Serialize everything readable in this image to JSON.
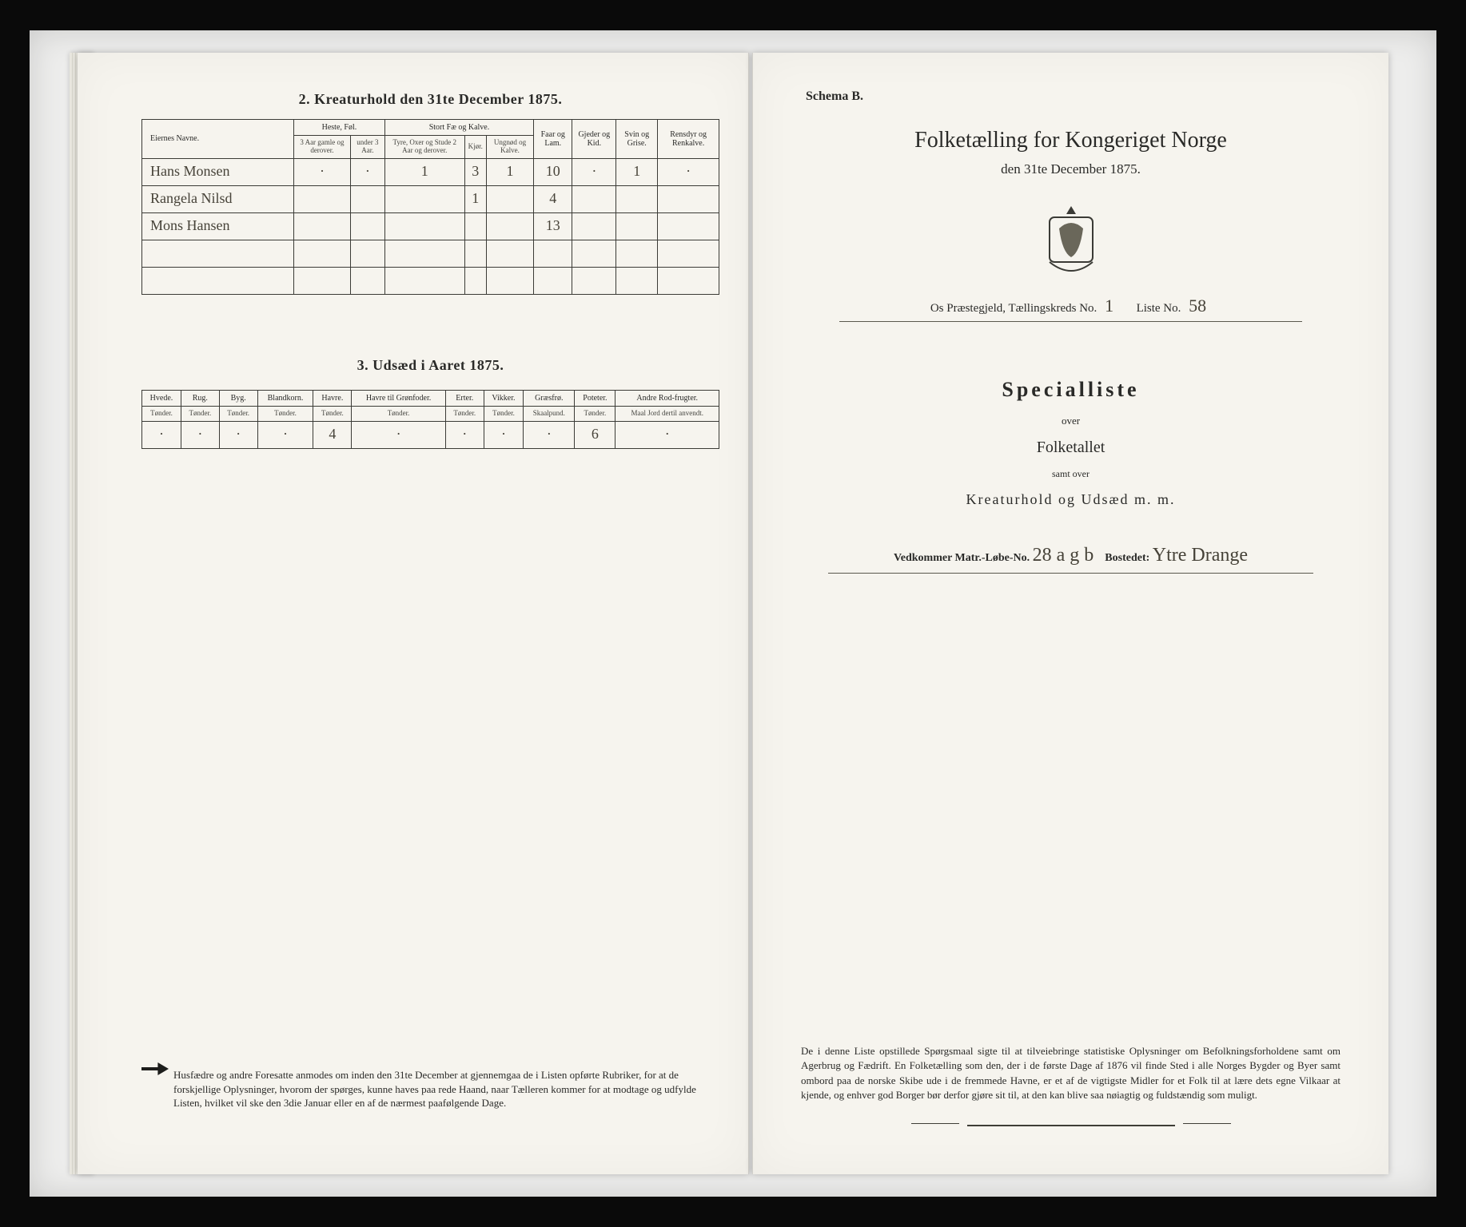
{
  "left": {
    "section2": {
      "title": "2.  Kreaturhold den 31te December 1875.",
      "group_headers": [
        "Eiernes Navne.",
        "Heste, Føl.",
        "Stort Fæ og Kalve.",
        "Faar og Lam.",
        "Gjeder og Kid.",
        "Svin og Grise.",
        "Rensdyr og Renkalve."
      ],
      "sub_headers": [
        "3 Aar gamle og derover.",
        "under 3 Aar.",
        "Tyre, Oxer og Stude 2 Aar og derover.",
        "Kjør.",
        "Ungnød og Kalve.",
        "",
        "",
        "",
        ""
      ],
      "rows": [
        {
          "owner": "Hans Monsen",
          "cells": [
            "·",
            "·",
            "1",
            "3",
            "1",
            "10",
            "·",
            "1",
            "·"
          ]
        },
        {
          "owner": "Rangela Nilsd",
          "cells": [
            "",
            "",
            "",
            "1",
            "",
            "4",
            "",
            "",
            ""
          ]
        },
        {
          "owner": "Mons Hansen",
          "cells": [
            "",
            "",
            "",
            "",
            "",
            "13",
            "",
            "",
            ""
          ]
        },
        {
          "owner": "",
          "cells": [
            "",
            "",
            "",
            "",
            "",
            "",
            "",
            "",
            ""
          ]
        },
        {
          "owner": "",
          "cells": [
            "",
            "",
            "",
            "",
            "",
            "",
            "",
            "",
            ""
          ]
        }
      ]
    },
    "section3": {
      "title": "3.  Udsæd i Aaret 1875.",
      "headers": [
        "Hvede.",
        "Rug.",
        "Byg.",
        "Blandkorn.",
        "Havre.",
        "Havre til Grønfoder.",
        "Erter.",
        "Vikker.",
        "Græsfrø.",
        "Poteter.",
        "Andre Rod-frugter."
      ],
      "subunits": [
        "Tønder.",
        "Tønder.",
        "Tønder.",
        "Tønder.",
        "Tønder.",
        "Tønder.",
        "Tønder.",
        "Tønder.",
        "Skaalpund.",
        "Tønder.",
        "Maal Jord dertil anvendt."
      ],
      "row": [
        "·",
        "·",
        "·",
        "·",
        "4",
        "·",
        "·",
        "·",
        "·",
        "6",
        "·"
      ]
    },
    "footnote": "Husfædre og andre Foresatte anmodes om inden den 31te December at gjennemgaa de i Listen opførte Rubriker, for at de forskjellige Oplysninger, hvorom der spørges, kunne haves paa rede Haand, naar Tælleren kommer for at modtage og udfylde Listen, hvilket vil ske den 3die Januar eller en af de nærmest paafølgende Dage."
  },
  "right": {
    "schema": "Schema B.",
    "title": "Folketælling for Kongeriget Norge",
    "subtitle": "den 31te December 1875.",
    "meta": {
      "prefix": "Os  Præstegjeld,  Tællingskreds No.",
      "kreds": "1",
      "liste_label": "Liste No.",
      "liste": "58"
    },
    "special": "Specialliste",
    "over": "over",
    "folket": "Folketallet",
    "samt": "samt over",
    "kreatur": "Kreaturhold  og  Udsæd  m. m.",
    "ved": {
      "prefix": "Vedkommer  Matr.-Løbe-No.",
      "matr": "28 a g b",
      "bosted_label": "Bostedet:",
      "bosted": "Ytre Drange"
    },
    "paragraph": "De i denne Liste opstillede Spørgsmaal sigte til at tilveiebringe statistiske Oplysninger om Befolkningsforholdene samt om Agerbrug og Fædrift.  En Folketælling som den, der i de første Dage af 1876 vil finde Sted i alle Norges Bygder og Byer samt ombord paa de norske Skibe ude i de fremmede Havne, er et af de vigtigste Midler for et Folk til at lære dets egne Vilkaar at kjende, og enhver god Borger bør derfor gjøre sit til, at den kan blive saa nøiagtig og fuldstændig som muligt."
  },
  "style": {
    "bg": "#0a0a0a",
    "paper": "#f6f4ee",
    "ink": "#2a2a28",
    "hw_color": "#464238",
    "border": "#3b3b36"
  }
}
